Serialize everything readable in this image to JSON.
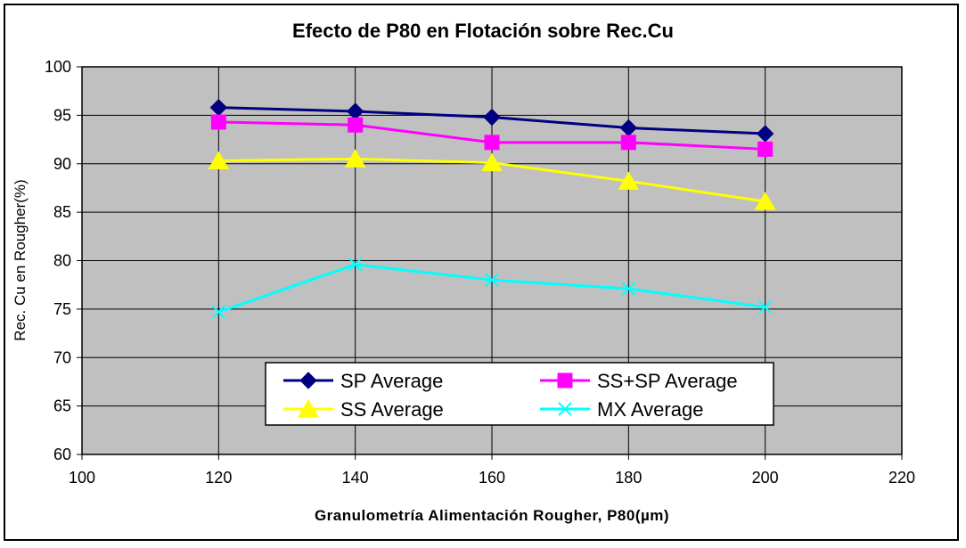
{
  "chart_data": {
    "type": "line",
    "title": "Efecto de P80 en Flotación sobre Rec.Cu",
    "xlabel": "Granulometría Alimentación Rougher, P80(µm)",
    "ylabel": "Rec. Cu en Rougher(%)",
    "xlim": [
      100,
      220
    ],
    "ylim": [
      60,
      100
    ],
    "xticks": [
      100,
      120,
      140,
      160,
      180,
      200,
      220
    ],
    "yticks": [
      60,
      65,
      70,
      75,
      80,
      85,
      90,
      95,
      100
    ],
    "grid": true,
    "legend_position": "bottom-center",
    "plot_background": "#c0c0c0",
    "x": [
      120,
      140,
      160,
      180,
      200
    ],
    "series": [
      {
        "name": "SP Average",
        "values": [
          95.8,
          95.4,
          94.8,
          93.7,
          93.1
        ],
        "color": "#000080",
        "marker": "diamond"
      },
      {
        "name": "SS+SP Average",
        "values": [
          94.3,
          94.0,
          92.2,
          92.2,
          91.5
        ],
        "color": "#ff00ff",
        "marker": "square"
      },
      {
        "name": "SS Average",
        "values": [
          90.3,
          90.5,
          90.1,
          88.2,
          86.1
        ],
        "color": "#ffff00",
        "marker": "triangle"
      },
      {
        "name": "MX Average",
        "values": [
          74.7,
          79.6,
          78.0,
          77.1,
          75.2
        ],
        "color": "#00ffff",
        "marker": "x"
      }
    ]
  }
}
